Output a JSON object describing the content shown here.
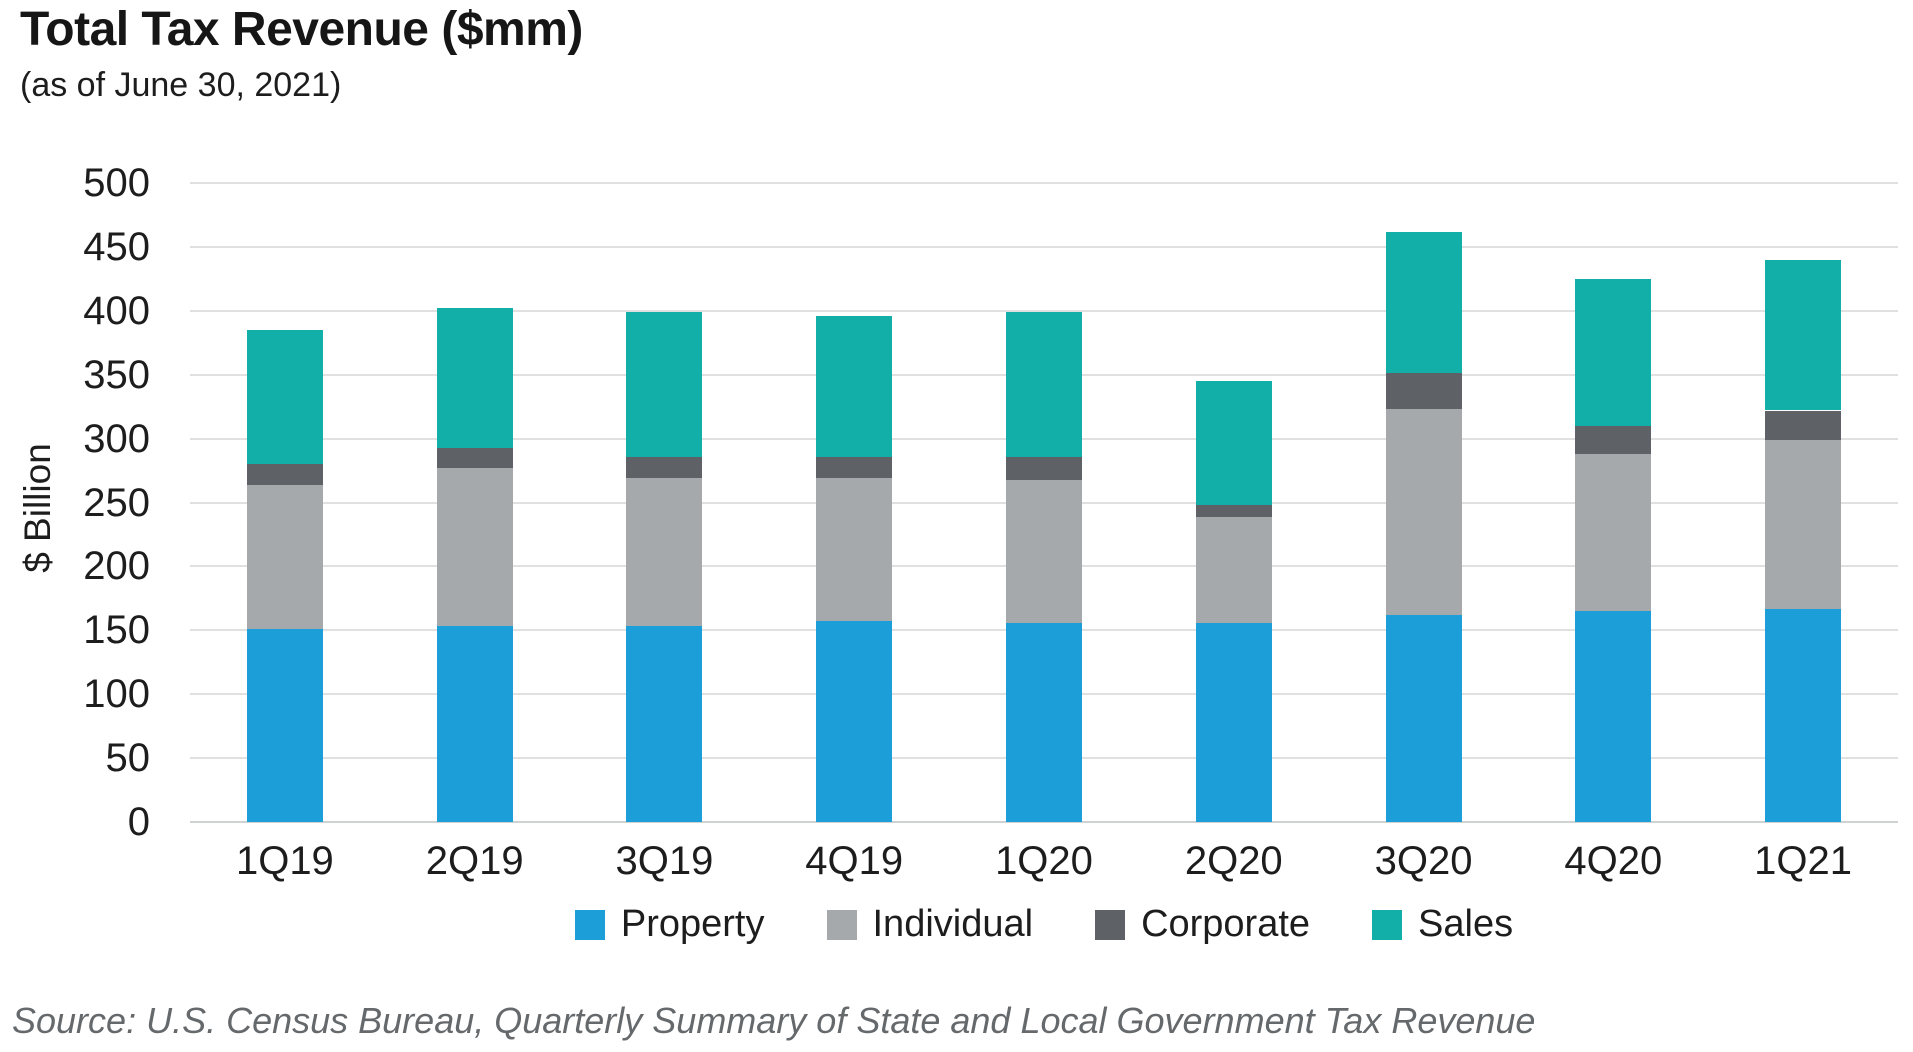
{
  "header": {
    "title": "Total Tax Revenue ($mm)",
    "subtitle": "(as of June 30, 2021)"
  },
  "footer": {
    "source": "Source: U.S. Census Bureau, Quarterly Summary of State and Local Government Tax Revenue"
  },
  "colors": {
    "property": "#1C9FD8",
    "individual": "#A6A9AC",
    "corporate": "#5E6267",
    "sales": "#12AFA8",
    "gridline": "#E0E0E0",
    "baseline": "#CFD2D3",
    "text": "#1D1D1D",
    "source_text": "#65696C"
  },
  "chart_data": {
    "type": "bar",
    "stacked": true,
    "title": "Total Tax Revenue ($mm)",
    "subtitle": "(as of June 30, 2021)",
    "xlabel": "",
    "ylabel": "$ Billion",
    "ylim": [
      0,
      500
    ],
    "ytick_step": 50,
    "grid": true,
    "legend_position": "bottom",
    "categories": [
      "1Q19",
      "2Q19",
      "3Q19",
      "4Q19",
      "1Q20",
      "2Q20",
      "3Q20",
      "4Q20",
      "1Q21"
    ],
    "series": [
      {
        "name": "Property",
        "color": "#1C9FD8",
        "values": [
          151,
          153,
          153,
          157,
          156,
          156,
          162,
          165,
          167
        ]
      },
      {
        "name": "Individual",
        "color": "#A6A9AC",
        "values": [
          113,
          124,
          116,
          112,
          112,
          83,
          161,
          123,
          132
        ]
      },
      {
        "name": "Corporate",
        "color": "#5E6267",
        "values": [
          16,
          16,
          17,
          17,
          18,
          9,
          28,
          22,
          23
        ]
      },
      {
        "name": "Sales",
        "color": "#12AFA8",
        "values": [
          105,
          109,
          113,
          110,
          113,
          97,
          111,
          115,
          118
        ]
      }
    ],
    "totals": [
      385,
      402,
      399,
      396,
      399,
      345,
      462,
      425,
      440
    ]
  }
}
